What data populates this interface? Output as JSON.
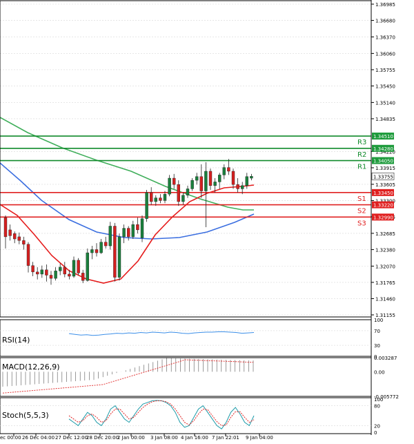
{
  "colors": {
    "bull": "#1a7f3c",
    "bear": "#d42020",
    "resistance": "#0f8a2a",
    "support": "#e02020",
    "ma_red": "#e51b1b",
    "ma_green": "#3fae5a",
    "ma_blue": "#3a6ee0",
    "rsi_line": "#3a8ee8",
    "macd_hist": "#555555",
    "macd_signal": "#e02020",
    "stoch_main": "#1a9aa8",
    "stoch_signal": "#e02020",
    "grid": "#d8d8d8",
    "current_price_bg": "#1e9b3c",
    "support_tag_bg": "#e02020",
    "resistance_tag_bg": "#1e9b3c"
  },
  "price_axis": {
    "ticks": [
      "1.36985",
      "1.36680",
      "1.36370",
      "1.36060",
      "1.35755",
      "1.35450",
      "1.35140",
      "1.34835",
      "1.34220",
      "1.33915",
      "1.33605",
      "1.33300",
      "1.32995",
      "1.32685",
      "1.32380",
      "1.32070",
      "1.31765",
      "1.31460",
      "1.31155"
    ]
  },
  "levels": {
    "resistance": [
      {
        "name": "R3",
        "tag": "1.34510",
        "value": 1.3451
      },
      {
        "name": "R2",
        "tag": "1.34280",
        "value": 1.3428
      },
      {
        "name": "R1",
        "tag": "1.34050",
        "value": 1.3405
      }
    ],
    "support": [
      {
        "name": "S1",
        "tag": "1.33450",
        "value": 1.3345
      },
      {
        "name": "S2",
        "tag": "1.33220",
        "value": 1.3322
      },
      {
        "name": "S3",
        "tag": "1.32990",
        "value": 1.3299
      }
    ],
    "current_price": {
      "tag": "1.33755",
      "value": 1.33755
    }
  },
  "time_axis": {
    "labels": [
      "ec 00:00",
      "26 Dec 04:00",
      "27 Dec 12:00",
      "28 Dec 20:00",
      "2 Jan 00:00",
      "3 Jan 08:00",
      "4 Jan 16:00",
      "7 Jan 22:01",
      "9 Jan 04:00"
    ]
  },
  "rsi": {
    "label": "RSI(14)",
    "ticks": [
      "100",
      "70",
      "30",
      "0"
    ],
    "values": [
      62,
      60,
      58,
      59,
      57,
      58,
      60,
      61,
      63,
      62,
      64,
      63,
      65,
      64,
      66,
      65,
      64,
      66,
      65,
      63,
      62,
      64,
      65,
      66,
      66,
      67,
      67,
      66,
      65,
      63,
      64,
      65
    ]
  },
  "macd": {
    "label": "MACD(12,26,9)",
    "ticks": [
      "0.003287",
      "0.00",
      "-0.005772"
    ]
  },
  "stoch": {
    "label": "Stoch(5,5,3)",
    "ticks": [
      "100",
      "80",
      "20",
      "0"
    ]
  },
  "chart_data": {
    "type": "candlestick",
    "title": "",
    "ylim": [
      1.31155,
      1.36985
    ],
    "candles": [
      [
        1.3298,
        1.3302,
        1.324,
        1.3262
      ],
      [
        1.3275,
        1.3285,
        1.3255,
        1.3264
      ],
      [
        1.3268,
        1.3272,
        1.325,
        1.3258
      ],
      [
        1.3262,
        1.327,
        1.3248,
        1.3255
      ],
      [
        1.3255,
        1.3262,
        1.3238,
        1.3248
      ],
      [
        1.3248,
        1.3252,
        1.3195,
        1.3208
      ],
      [
        1.3208,
        1.3215,
        1.3188,
        1.3196
      ],
      [
        1.3196,
        1.3205,
        1.3182,
        1.3192
      ],
      [
        1.3192,
        1.3208,
        1.3185,
        1.32
      ],
      [
        1.32,
        1.321,
        1.3178,
        1.319
      ],
      [
        1.319,
        1.3198,
        1.3172,
        1.3184
      ],
      [
        1.3184,
        1.3205,
        1.318,
        1.3198
      ],
      [
        1.3198,
        1.3212,
        1.319,
        1.3205
      ],
      [
        1.3205,
        1.3215,
        1.3186,
        1.3192
      ],
      [
        1.3192,
        1.32,
        1.3182,
        1.3188
      ],
      [
        1.3188,
        1.3225,
        1.3185,
        1.3218
      ],
      [
        1.3218,
        1.3222,
        1.319,
        1.3194
      ],
      [
        1.3194,
        1.32,
        1.3175,
        1.318
      ],
      [
        1.318,
        1.324,
        1.3178,
        1.3232
      ],
      [
        1.3232,
        1.3245,
        1.322,
        1.3238
      ],
      [
        1.3238,
        1.325,
        1.3225,
        1.3232
      ],
      [
        1.3232,
        1.3258,
        1.323,
        1.3252
      ],
      [
        1.3252,
        1.3262,
        1.324,
        1.3245
      ],
      [
        1.3245,
        1.329,
        1.3238,
        1.3282
      ],
      [
        1.3282,
        1.3288,
        1.3178,
        1.3186
      ],
      [
        1.3186,
        1.3268,
        1.318,
        1.3262
      ],
      [
        1.3262,
        1.3285,
        1.325,
        1.3278
      ],
      [
        1.3278,
        1.3282,
        1.3255,
        1.3262
      ],
      [
        1.3262,
        1.3292,
        1.3258,
        1.3285
      ],
      [
        1.3285,
        1.3298,
        1.3268,
        1.3275
      ],
      [
        1.326,
        1.3302,
        1.3252,
        1.3296
      ],
      [
        1.3296,
        1.335,
        1.329,
        1.3345
      ],
      [
        1.3345,
        1.3355,
        1.3322,
        1.3328
      ],
      [
        1.3328,
        1.334,
        1.332,
        1.3335
      ],
      [
        1.3335,
        1.3342,
        1.3325,
        1.333
      ],
      [
        1.333,
        1.3348,
        1.3325,
        1.3342
      ],
      [
        1.3342,
        1.3378,
        1.3338,
        1.3372
      ],
      [
        1.3372,
        1.338,
        1.3352,
        1.336
      ],
      [
        1.336,
        1.3368,
        1.332,
        1.3328
      ],
      [
        1.3328,
        1.3345,
        1.3322,
        1.334
      ],
      [
        1.334,
        1.3358,
        1.3335,
        1.3352
      ],
      [
        1.3352,
        1.3372,
        1.3348,
        1.3368
      ],
      [
        1.3368,
        1.3382,
        1.336,
        1.3375
      ],
      [
        1.3375,
        1.3398,
        1.3335,
        1.3348
      ],
      [
        1.3348,
        1.3402,
        1.328,
        1.3385
      ],
      [
        1.3385,
        1.339,
        1.335,
        1.3358
      ],
      [
        1.3358,
        1.3372,
        1.3345,
        1.3365
      ],
      [
        1.3365,
        1.3382,
        1.3352,
        1.3378
      ],
      [
        1.3378,
        1.3398,
        1.337,
        1.3392
      ],
      [
        1.3392,
        1.3408,
        1.3378,
        1.3385
      ],
      [
        1.3385,
        1.339,
        1.3352,
        1.336
      ],
      [
        1.336,
        1.3372,
        1.3345,
        1.3352
      ],
      [
        1.3352,
        1.3365,
        1.3342,
        1.3358
      ],
      [
        1.3358,
        1.3382,
        1.3352,
        1.3375
      ],
      [
        1.3372,
        1.338,
        1.3368,
        1.33755
      ]
    ]
  }
}
